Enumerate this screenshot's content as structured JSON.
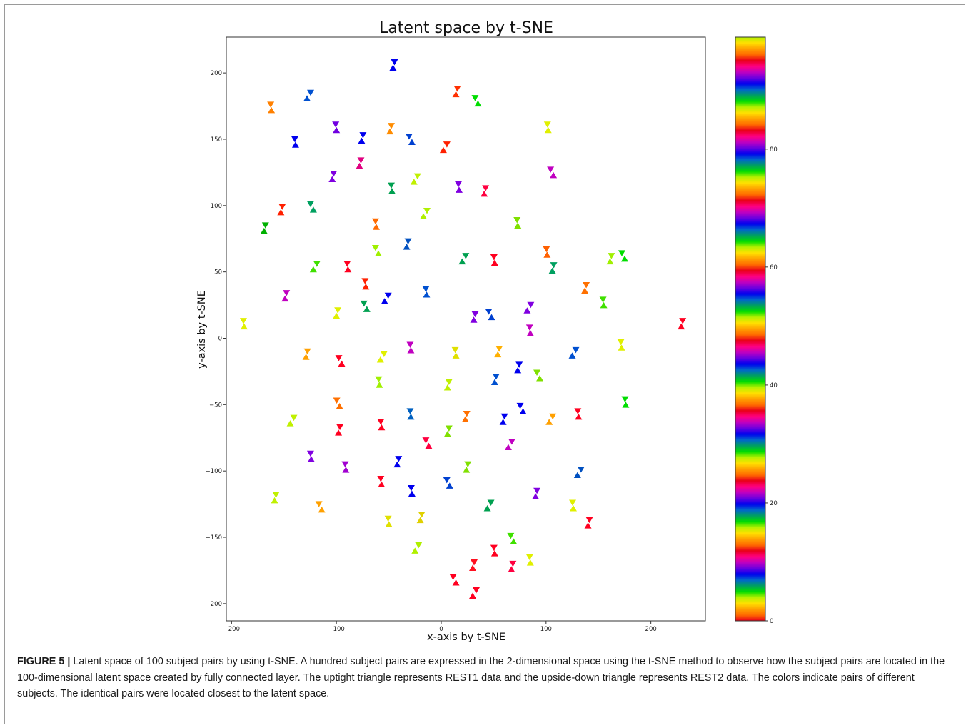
{
  "figure": {
    "caption_label": "FIGURE 5 |",
    "caption_text": " Latent space of 100 subject pairs by using t-SNE. A hundred subject pairs are expressed in the 2-dimensional space using the t-SNE method to observe how the subject pairs are located in the 100-dimensional latent space created by fully connected layer. The uptight triangle represents REST1 data and the upside-down triangle represents REST2 data. The colors indicate pairs of different subjects. The identical pairs were located closest to the latent space."
  },
  "chart_data": {
    "type": "scatter",
    "title": "Latent space by t-SNE",
    "xlabel": "x-axis by t-SNE",
    "ylabel": "y-axis by t-SNE",
    "xlim": [
      -205,
      252
    ],
    "ylim": [
      -213,
      227
    ],
    "xticks": [
      -200,
      -100,
      0,
      100,
      200
    ],
    "yticks": [
      -200,
      -150,
      -100,
      -50,
      0,
      50,
      100,
      150,
      200
    ],
    "xtick_labels": [
      "−200",
      "−100",
      "0",
      "100",
      "200"
    ],
    "ytick_labels": [
      "−200",
      "−150",
      "−100",
      "−50",
      "0",
      "50",
      "100",
      "150",
      "200"
    ],
    "grid": false,
    "markers": {
      "REST1": "upright triangle",
      "REST2": "upside-down triangle"
    },
    "colorbar": {
      "range": [
        0,
        99
      ],
      "ticks": [
        0,
        20,
        40,
        60,
        80
      ],
      "tick_labels": [
        "0",
        "20",
        "40",
        "60",
        "80"
      ],
      "colormap_cycle": [
        "#e8001a",
        "#ff6a00",
        "#ffa000",
        "#ffe000",
        "#b6f000",
        "#00dd00",
        "#00a060",
        "#0066cc",
        "#0000ee",
        "#6a00e0",
        "#c000c0",
        "#ff0080"
      ]
    },
    "pairs": [
      {
        "x": -45,
        "y": 206,
        "c": "#0000ee"
      },
      {
        "x": 14,
        "y": 186,
        "c": "#ff3000"
      },
      {
        "x": 34,
        "y": 179,
        "c": "#00dd00"
      },
      {
        "x": -127,
        "y": 183,
        "c": "#0050d0"
      },
      {
        "x": -162,
        "y": 174,
        "c": "#ff8000"
      },
      {
        "x": -101,
        "y": 159,
        "c": "#7000e0"
      },
      {
        "x": -48,
        "y": 158,
        "c": "#ff8c00"
      },
      {
        "x": -76,
        "y": 151,
        "c": "#0000ee"
      },
      {
        "x": -29,
        "y": 150,
        "c": "#0040d0"
      },
      {
        "x": 3,
        "y": 144,
        "c": "#ff2000"
      },
      {
        "x": 102,
        "y": 159,
        "c": "#e0f000"
      },
      {
        "x": -140,
        "y": 148,
        "c": "#0000ee"
      },
      {
        "x": -77,
        "y": 132,
        "c": "#e00080"
      },
      {
        "x": -104,
        "y": 122,
        "c": "#8000e0"
      },
      {
        "x": 106,
        "y": 125,
        "c": "#c000c0"
      },
      {
        "x": -25,
        "y": 120,
        "c": "#c0f000"
      },
      {
        "x": -47,
        "y": 113,
        "c": "#00a050"
      },
      {
        "x": 16,
        "y": 114,
        "c": "#8000e0"
      },
      {
        "x": 42,
        "y": 111,
        "c": "#ff0040"
      },
      {
        "x": -153,
        "y": 97,
        "c": "#ff2000"
      },
      {
        "x": -123,
        "y": 99,
        "c": "#00a060"
      },
      {
        "x": -16,
        "y": 94,
        "c": "#b0f000"
      },
      {
        "x": -62,
        "y": 86,
        "c": "#ff6a00"
      },
      {
        "x": 72,
        "y": 87,
        "c": "#80e000"
      },
      {
        "x": -168,
        "y": 83,
        "c": "#00b000"
      },
      {
        "x": -33,
        "y": 71,
        "c": "#0050c0"
      },
      {
        "x": -61,
        "y": 66,
        "c": "#a0f000"
      },
      {
        "x": 21,
        "y": 60,
        "c": "#00a050"
      },
      {
        "x": 51,
        "y": 59,
        "c": "#ff0020"
      },
      {
        "x": 100,
        "y": 65,
        "c": "#ff6000"
      },
      {
        "x": 107,
        "y": 53,
        "c": "#00a060"
      },
      {
        "x": 161,
        "y": 60,
        "c": "#a0f000"
      },
      {
        "x": 174,
        "y": 62,
        "c": "#00dd00"
      },
      {
        "x": -121,
        "y": 54,
        "c": "#40e000"
      },
      {
        "x": -89,
        "y": 54,
        "c": "#ff0020"
      },
      {
        "x": -73,
        "y": 41,
        "c": "#ff2000"
      },
      {
        "x": 138,
        "y": 38,
        "c": "#ff7000"
      },
      {
        "x": -149,
        "y": 32,
        "c": "#c000c0"
      },
      {
        "x": -72,
        "y": 24,
        "c": "#00a050"
      },
      {
        "x": -53,
        "y": 30,
        "c": "#0000ee"
      },
      {
        "x": -14,
        "y": 35,
        "c": "#0050d0"
      },
      {
        "x": 154,
        "y": 27,
        "c": "#40e000"
      },
      {
        "x": -99,
        "y": 19,
        "c": "#e0f000"
      },
      {
        "x": 31,
        "y": 16,
        "c": "#8000e0"
      },
      {
        "x": 47,
        "y": 18,
        "c": "#0040d0"
      },
      {
        "x": 83,
        "y": 23,
        "c": "#8000e0"
      },
      {
        "x": -188,
        "y": 11,
        "c": "#e0f000"
      },
      {
        "x": 84,
        "y": 6,
        "c": "#c000c0"
      },
      {
        "x": 230,
        "y": 11,
        "c": "#ff0020"
      },
      {
        "x": -129,
        "y": -12,
        "c": "#ffa000"
      },
      {
        "x": -96,
        "y": -17,
        "c": "#ff0020"
      },
      {
        "x": -57,
        "y": -14,
        "c": "#e0f000"
      },
      {
        "x": -29,
        "y": -7,
        "c": "#c000c0"
      },
      {
        "x": 13,
        "y": -11,
        "c": "#e0e000"
      },
      {
        "x": 55,
        "y": -10,
        "c": "#ffb000"
      },
      {
        "x": 73,
        "y": -22,
        "c": "#0000ee"
      },
      {
        "x": 93,
        "y": -28,
        "c": "#80e000"
      },
      {
        "x": 126,
        "y": -11,
        "c": "#0050d0"
      },
      {
        "x": 172,
        "y": -5,
        "c": "#e0f000"
      },
      {
        "x": -60,
        "y": -33,
        "c": "#a0f000"
      },
      {
        "x": 7,
        "y": -35,
        "c": "#c0f000"
      },
      {
        "x": 51,
        "y": -31,
        "c": "#0050d0"
      },
      {
        "x": -98,
        "y": -49,
        "c": "#ff7000"
      },
      {
        "x": -143,
        "y": -62,
        "c": "#c0f000"
      },
      {
        "x": -29,
        "y": -57,
        "c": "#0060c0"
      },
      {
        "x": -58,
        "y": -65,
        "c": "#ff0020"
      },
      {
        "x": 24,
        "y": -59,
        "c": "#ff7000"
      },
      {
        "x": 59,
        "y": -61,
        "c": "#0000ee"
      },
      {
        "x": 77,
        "y": -53,
        "c": "#0000ee"
      },
      {
        "x": 104,
        "y": -61,
        "c": "#ffa000"
      },
      {
        "x": 131,
        "y": -57,
        "c": "#ff0020"
      },
      {
        "x": 175,
        "y": -48,
        "c": "#00dd00"
      },
      {
        "x": -97,
        "y": -69,
        "c": "#ff0020"
      },
      {
        "x": 6,
        "y": -70,
        "c": "#80e000"
      },
      {
        "x": -13,
        "y": -79,
        "c": "#ff0040"
      },
      {
        "x": 65,
        "y": -80,
        "c": "#c000c0"
      },
      {
        "x": -124,
        "y": -89,
        "c": "#8000e0"
      },
      {
        "x": -92,
        "y": -97,
        "c": "#a000d0"
      },
      {
        "x": -41,
        "y": -93,
        "c": "#0000ee"
      },
      {
        "x": 24,
        "y": -97,
        "c": "#80e000"
      },
      {
        "x": 7,
        "y": -109,
        "c": "#0040d0"
      },
      {
        "x": 131,
        "y": -101,
        "c": "#0050c0"
      },
      {
        "x": -57,
        "y": -108,
        "c": "#ff0020"
      },
      {
        "x": -29,
        "y": -115,
        "c": "#0000ee"
      },
      {
        "x": 91,
        "y": -117,
        "c": "#8000e0"
      },
      {
        "x": -159,
        "y": -120,
        "c": "#c0f000"
      },
      {
        "x": -115,
        "y": -127,
        "c": "#ffa000"
      },
      {
        "x": 45,
        "y": -126,
        "c": "#00a050"
      },
      {
        "x": 126,
        "y": -126,
        "c": "#e0f000"
      },
      {
        "x": -51,
        "y": -138,
        "c": "#e0e000"
      },
      {
        "x": -19,
        "y": -135,
        "c": "#e0d000"
      },
      {
        "x": 140,
        "y": -139,
        "c": "#ff0020"
      },
      {
        "x": 68,
        "y": -151,
        "c": "#40e000"
      },
      {
        "x": -24,
        "y": -158,
        "c": "#b0f000"
      },
      {
        "x": 51,
        "y": -160,
        "c": "#ff0020"
      },
      {
        "x": 84,
        "y": -167,
        "c": "#e0f000"
      },
      {
        "x": 31,
        "y": -171,
        "c": "#ff1020"
      },
      {
        "x": 67,
        "y": -172,
        "c": "#ff0040"
      },
      {
        "x": 13,
        "y": -182,
        "c": "#ff0020"
      },
      {
        "x": 31,
        "y": -192,
        "c": "#ff0020"
      }
    ]
  }
}
